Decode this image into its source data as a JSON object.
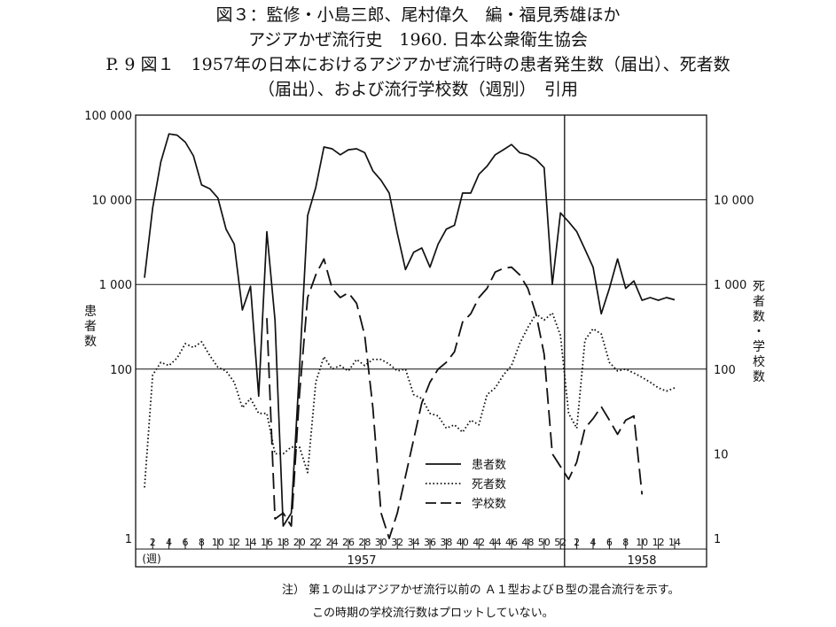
{
  "caption": {
    "line1": "図３：監修・小島三郎、尾村偉久　編・福見秀雄ほか",
    "line2": "アジアかぜ流行史　1960.  日本公衆衛生協会",
    "line3": "P. 9 図１　1957年の日本におけるアジアかぜ流行時の患者発生数（届出）、死者数",
    "line4": "（届出）、および流行学校数（週別）　引用"
  },
  "notes": {
    "line1": "注）  第１の山はアジアかぜ流行以前の Ａ１型およびＢ型の混合流行を示す。",
    "line2": "この時期の学校流行数はプロットしていない。"
  },
  "chart_data": {
    "type": "line",
    "scale": "log",
    "left_axis": {
      "label": "患者数",
      "ticks": [
        1,
        100,
        1000,
        10000,
        100000
      ],
      "tick_labels": [
        "1",
        "100",
        "1 000",
        "10 000",
        "100 000"
      ],
      "range": [
        1,
        100000
      ]
    },
    "right_axis": {
      "label": "死者数・学校数",
      "ticks": [
        1,
        10,
        100,
        1000,
        10000
      ],
      "tick_labels": [
        "1",
        "10",
        "100",
        "1 000",
        "10 000"
      ],
      "range": [
        1,
        10000
      ]
    },
    "x_ticks": {
      "1957": [
        "2",
        "4",
        "6",
        "8",
        "10",
        "12",
        "14",
        "16",
        "18",
        "20",
        "22",
        "24",
        "26",
        "28",
        "30",
        "32",
        "34",
        "36",
        "38",
        "40",
        "42",
        "44",
        "46",
        "48",
        "50",
        "52"
      ],
      "1958": [
        "2",
        "4",
        "6",
        "8",
        "10",
        "12",
        "14"
      ],
      "week_label": "(週)",
      "year_labels": [
        "1957",
        "1958"
      ]
    },
    "legend": {
      "placement": "inside-bottom-center",
      "entries": [
        "患者数",
        "死者数",
        "学校数"
      ]
    },
    "grid": "horizontal",
    "series": [
      {
        "name": "患者数",
        "axis": "left",
        "style": "solid",
        "x": [
          1,
          2,
          3,
          4,
          5,
          6,
          7,
          8,
          9,
          10,
          11,
          12,
          13,
          14,
          15,
          16,
          17,
          18,
          19,
          20,
          21,
          22,
          23,
          24,
          25,
          26,
          27,
          28,
          29,
          30,
          31,
          32,
          33,
          34,
          35,
          36,
          37,
          38,
          39,
          40,
          41,
          42,
          43,
          44,
          45,
          46,
          47,
          48,
          49,
          50,
          51,
          52,
          53,
          54,
          55,
          56,
          57,
          58,
          59,
          60,
          61,
          62,
          63,
          64,
          65,
          66
        ],
        "values": [
          1200,
          8000,
          28000,
          60000,
          58000,
          48000,
          33000,
          15000,
          13500,
          10500,
          4500,
          3000,
          500,
          950,
          48,
          4200,
          380,
          1.4,
          2,
          100,
          6500,
          14000,
          42000,
          40000,
          34000,
          39000,
          40000,
          36000,
          22000,
          17000,
          12000,
          4000,
          1500,
          2400,
          2700,
          1600,
          3000,
          4500,
          5000,
          12000,
          12000,
          20000,
          25000,
          34000,
          39000,
          45000,
          36000,
          34000,
          30000,
          24000,
          1000,
          7000,
          5500,
          4200,
          2600,
          1600,
          450,
          900,
          2000,
          900,
          1100,
          650,
          700,
          650,
          700,
          660
        ]
      },
      {
        "name": "死者数",
        "axis": "right",
        "style": "dotted",
        "x": [
          1,
          2,
          3,
          4,
          5,
          6,
          7,
          8,
          9,
          10,
          11,
          12,
          13,
          14,
          15,
          16,
          17,
          18,
          19,
          20,
          21,
          22,
          23,
          24,
          25,
          26,
          27,
          28,
          29,
          30,
          31,
          32,
          33,
          34,
          35,
          36,
          37,
          38,
          39,
          40,
          41,
          42,
          43,
          44,
          45,
          46,
          47,
          48,
          49,
          50,
          51,
          52,
          53,
          54,
          55,
          56,
          57,
          58,
          59,
          60,
          61,
          62,
          63,
          64,
          65,
          66
        ],
        "values": [
          4,
          85,
          120,
          110,
          135,
          200,
          180,
          210,
          145,
          105,
          95,
          70,
          35,
          45,
          30,
          30,
          10,
          10,
          12,
          12,
          6,
          70,
          140,
          100,
          110,
          95,
          130,
          110,
          130,
          130,
          115,
          95,
          100,
          50,
          45,
          30,
          28,
          20,
          22,
          18,
          25,
          22,
          50,
          60,
          85,
          110,
          200,
          310,
          450,
          380,
          460,
          250,
          30,
          20,
          220,
          300,
          260,
          120,
          95,
          100,
          90,
          80,
          70,
          60,
          55,
          60
        ]
      },
      {
        "name": "学校数",
        "axis": "right",
        "style": "dashed",
        "x": [
          16,
          17,
          18,
          19,
          20,
          21,
          22,
          23,
          24,
          25,
          26,
          27,
          28,
          29,
          30,
          31,
          32,
          35,
          36,
          37,
          38,
          39,
          40,
          41,
          42,
          43,
          44,
          45,
          46,
          47,
          48,
          49,
          50,
          51,
          53,
          54,
          55,
          56,
          57,
          58,
          59,
          60,
          61,
          62
        ],
        "values": [
          400,
          1.7,
          2,
          1.4,
          50,
          700,
          1300,
          2000,
          900,
          700,
          800,
          600,
          250,
          35,
          2,
          1,
          2,
          40,
          70,
          100,
          120,
          160,
          360,
          450,
          700,
          900,
          1400,
          1550,
          1600,
          1300,
          900,
          450,
          150,
          10,
          5,
          8,
          20,
          26,
          36,
          25,
          17,
          25,
          28,
          3.3
        ]
      }
    ]
  }
}
